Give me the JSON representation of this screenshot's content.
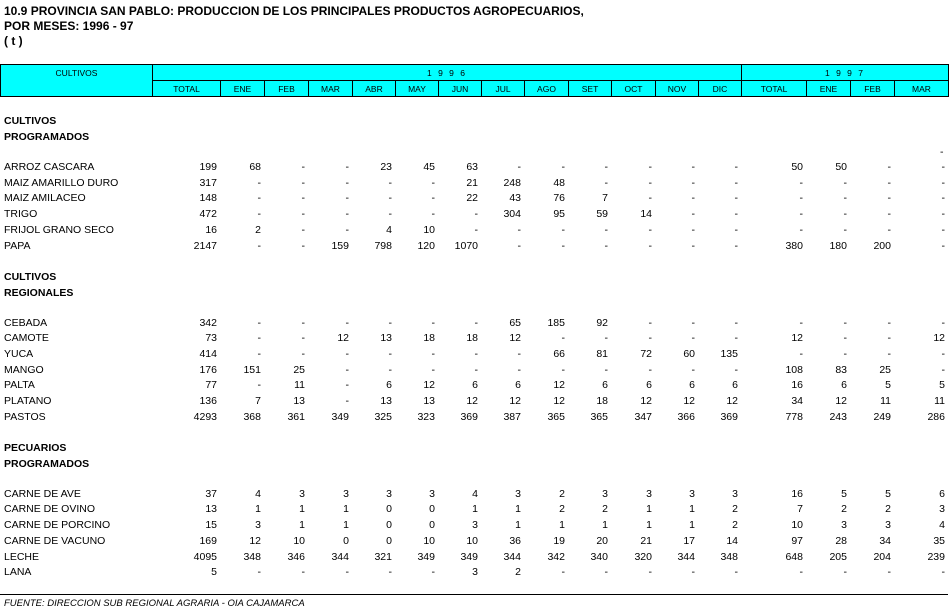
{
  "header": {
    "title_lines": [
      "10.9  PROVINCIA SAN PABLO: PRODUCCION DE LOS PRINCIPALES PRODUCTOS AGROPECUARIOS,",
      "POR  MESES: 1996 -  97",
      "( t )"
    ]
  },
  "table": {
    "first_column": "CULTIVOS",
    "years": [
      "1 9 9 6",
      "1 9 9 7"
    ],
    "columns_1996": [
      "TOTAL",
      "ENE",
      "FEB",
      "MAR",
      "ABR",
      "MAY",
      "JUN",
      "JUL",
      "AGO",
      "SET",
      "OCT",
      "NOV",
      "DIC"
    ],
    "columns_1997": [
      "TOTAL",
      "ENE",
      "FEB",
      "MAR"
    ],
    "stray_mark": "-",
    "sections": [
      {
        "title": [
          "CULTIVOS",
          "PROGRAMADOS"
        ],
        "rows": [
          {
            "label": "ARROZ CASCARA",
            "values": [
              199,
              68,
              "-",
              "-",
              23,
              45,
              63,
              "-",
              "-",
              "-",
              "-",
              "-",
              "-",
              50,
              50,
              "-",
              "-"
            ]
          },
          {
            "label": "MAIZ AMARILLO DURO",
            "values": [
              317,
              "-",
              "-",
              "-",
              "-",
              "-",
              21,
              248,
              48,
              "-",
              "-",
              "-",
              "-",
              "-",
              "-",
              "-",
              "-"
            ]
          },
          {
            "label": "MAIZ AMILACEO",
            "values": [
              148,
              "-",
              "-",
              "-",
              "-",
              "-",
              22,
              43,
              76,
              7,
              "-",
              "-",
              "-",
              "-",
              "-",
              "-",
              "-"
            ]
          },
          {
            "label": "TRIGO",
            "values": [
              472,
              "-",
              "-",
              "-",
              "-",
              "-",
              "-",
              304,
              95,
              59,
              14,
              "-",
              "-",
              "-",
              "-",
              "-",
              "-"
            ]
          },
          {
            "label": "FRIJOL GRANO SECO",
            "values": [
              16,
              2,
              "-",
              "-",
              4,
              10,
              "-",
              "-",
              "-",
              "-",
              "-",
              "-",
              "-",
              "-",
              "-",
              "-",
              "-"
            ]
          },
          {
            "label": "PAPA",
            "values": [
              2147,
              "-",
              "-",
              159,
              798,
              120,
              1070,
              "-",
              "-",
              "-",
              "-",
              "-",
              "-",
              380,
              180,
              200,
              "-"
            ]
          }
        ]
      },
      {
        "title": [
          "CULTIVOS",
          "REGIONALES"
        ],
        "rows": [
          {
            "label": "CEBADA",
            "values": [
              342,
              "-",
              "-",
              "-",
              "-",
              "-",
              "-",
              65,
              185,
              92,
              "-",
              "-",
              "-",
              "-",
              "-",
              "-",
              "-"
            ]
          },
          {
            "label": "CAMOTE",
            "values": [
              73,
              "-",
              "-",
              12,
              13,
              18,
              18,
              12,
              "-",
              "-",
              "-",
              "-",
              "-",
              12,
              "-",
              "-",
              12
            ]
          },
          {
            "label": "YUCA",
            "values": [
              414,
              "-",
              "-",
              "-",
              "-",
              "-",
              "-",
              "-",
              66,
              81,
              72,
              60,
              135,
              "-",
              "-",
              "-",
              "-"
            ]
          },
          {
            "label": "MANGO",
            "values": [
              176,
              151,
              25,
              "-",
              "-",
              "-",
              "-",
              "-",
              "-",
              "-",
              "-",
              "-",
              "-",
              108,
              83,
              25,
              "-"
            ]
          },
          {
            "label": "PALTA",
            "values": [
              77,
              "-",
              11,
              "-",
              6,
              12,
              6,
              6,
              12,
              6,
              6,
              6,
              6,
              16,
              6,
              5,
              5
            ]
          },
          {
            "label": "PLATANO",
            "values": [
              136,
              7,
              13,
              "-",
              13,
              13,
              12,
              12,
              12,
              18,
              12,
              12,
              12,
              34,
              12,
              11,
              11
            ]
          },
          {
            "label": "PASTOS",
            "values": [
              4293,
              368,
              361,
              349,
              325,
              323,
              369,
              387,
              365,
              365,
              347,
              366,
              369,
              778,
              243,
              249,
              286
            ]
          }
        ]
      },
      {
        "title": [
          "PECUARIOS",
          "PROGRAMADOS"
        ],
        "rows": [
          {
            "label": "CARNE DE AVE",
            "values": [
              37,
              4,
              3,
              3,
              3,
              3,
              4,
              3,
              2,
              3,
              3,
              3,
              3,
              16,
              5,
              5,
              6
            ]
          },
          {
            "label": "CARNE DE OVINO",
            "values": [
              13,
              1,
              1,
              1,
              0,
              0,
              1,
              1,
              2,
              2,
              1,
              1,
              2,
              7,
              2,
              2,
              3
            ]
          },
          {
            "label": "CARNE DE PORCINO",
            "values": [
              15,
              3,
              1,
              1,
              0,
              0,
              3,
              1,
              1,
              1,
              1,
              1,
              2,
              10,
              3,
              3,
              4
            ]
          },
          {
            "label": "CARNE DE VACUNO",
            "values": [
              169,
              12,
              10,
              0,
              0,
              10,
              10,
              36,
              19,
              20,
              21,
              17,
              14,
              97,
              28,
              34,
              35
            ]
          },
          {
            "label": "LECHE",
            "values": [
              4095,
              348,
              346,
              344,
              321,
              349,
              349,
              344,
              342,
              340,
              320,
              344,
              348,
              648,
              205,
              204,
              239
            ]
          },
          {
            "label": "LANA",
            "values": [
              5,
              "-",
              "-",
              "-",
              "-",
              "-",
              3,
              2,
              "-",
              "-",
              "-",
              "-",
              "-",
              "-",
              "-",
              "-",
              "-"
            ]
          }
        ]
      }
    ]
  },
  "footer": {
    "source": "FUENTE: DIRECCION SUB REGIONAL AGRARIA - OIA CAJAMARCA"
  }
}
